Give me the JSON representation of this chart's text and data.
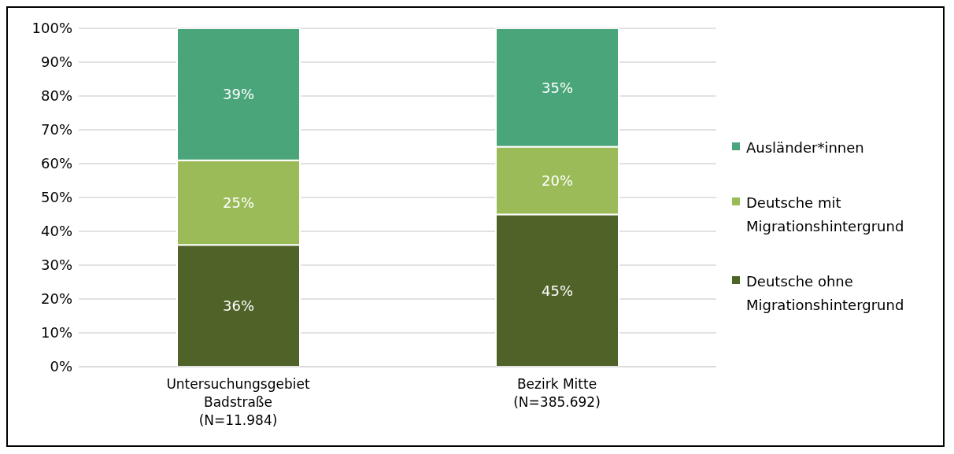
{
  "chart_data": {
    "type": "bar",
    "stacked": true,
    "categories": [
      "Untersuchungsgebiet\nBadstraße\n(N=11.984)",
      "Bezirk Mitte\n(N=385.692)"
    ],
    "series": [
      {
        "name": "Deutsche ohne Migrationshintergrund",
        "color": "#4f6228",
        "values": [
          36,
          45
        ]
      },
      {
        "name": "Deutsche mit Migrationshintergrund",
        "color": "#9bbb59",
        "values": [
          25,
          20
        ]
      },
      {
        "name": "Ausländer*innen",
        "color": "#4aa67a",
        "values": [
          39,
          35
        ]
      }
    ],
    "ylim": [
      0,
      100
    ],
    "yticks": [
      {
        "value": 0,
        "label": "0%"
      },
      {
        "value": 10,
        "label": "10%"
      },
      {
        "value": 20,
        "label": "20%"
      },
      {
        "value": 30,
        "label": "30%"
      },
      {
        "value": 40,
        "label": "40%"
      },
      {
        "value": 50,
        "label": "50%"
      },
      {
        "value": 60,
        "label": "60%"
      },
      {
        "value": 70,
        "label": "70%"
      },
      {
        "value": 80,
        "label": "80%"
      },
      {
        "value": 90,
        "label": "90%"
      },
      {
        "value": 100,
        "label": "100%"
      }
    ],
    "grid": "y",
    "legend": "right",
    "value_labels": [
      [
        "36%",
        "45%"
      ],
      [
        "25%",
        "20%"
      ],
      [
        "39%",
        "35%"
      ]
    ]
  }
}
